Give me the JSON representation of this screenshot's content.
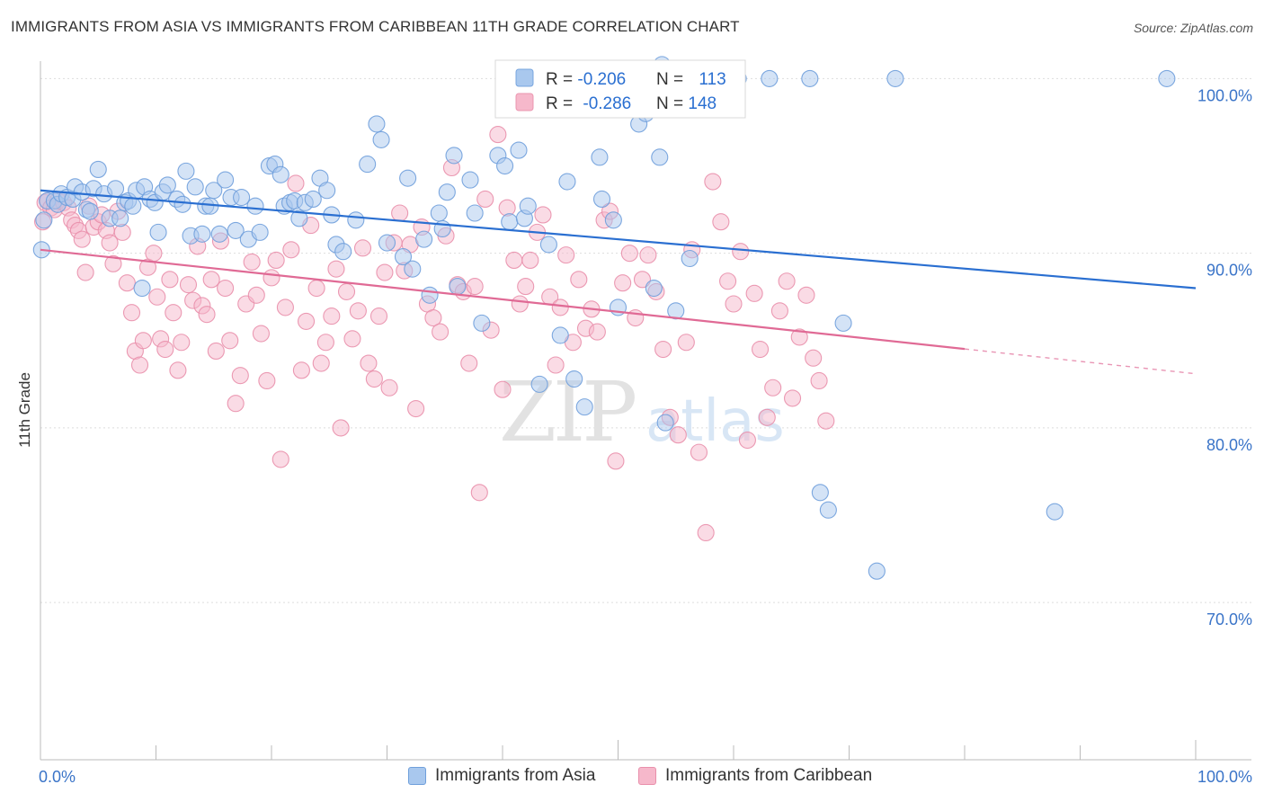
{
  "title": "IMMIGRANTS FROM ASIA VS IMMIGRANTS FROM CARIBBEAN 11TH GRADE CORRELATION CHART",
  "source": "Source: ZipAtlas.com",
  "watermark": {
    "zip": "ZIP",
    "atlas": "atlas"
  },
  "colors": {
    "asia_fill": "#a9c8ee",
    "asia_stroke": "#6f9fdb",
    "asia_line": "#2a6fd1",
    "carib_fill": "#f6b8cb",
    "carib_stroke": "#e98fab",
    "carib_line": "#e06a95",
    "tick_label": "#3a74c8",
    "grid": "#dddddd"
  },
  "legend": {
    "rows": [
      {
        "r_label": "R = ",
        "r_value": "-0.206",
        "n_label": "N = ",
        "n_value": "113"
      },
      {
        "r_label": "R = ",
        "r_value": "-0.286",
        "n_label": "N = ",
        "n_value": "148"
      }
    ]
  },
  "chart_data": {
    "type": "scatter",
    "ylabel": "11th Grade",
    "xlabel": "",
    "xlim": [
      0,
      100
    ],
    "ylim": [
      61,
      101
    ],
    "x_tick_labels": [
      "0.0%",
      "100.0%"
    ],
    "y_ticks": [
      70,
      80,
      90,
      100
    ],
    "y_tick_labels": [
      "70.0%",
      "80.0%",
      "90.0%",
      "100.0%"
    ],
    "grid": true,
    "legend_position": "top-center",
    "series": [
      {
        "name": "Immigrants from Asia",
        "r": -0.206,
        "n": 113,
        "trend": {
          "x": [
            0,
            100
          ],
          "y": [
            93.6,
            88.0
          ]
        },
        "points": [
          [
            0.3,
            91.9
          ],
          [
            0.1,
            90.2
          ],
          [
            0.6,
            93.0
          ],
          [
            1.2,
            93.0
          ],
          [
            1.5,
            92.8
          ],
          [
            1.8,
            93.4
          ],
          [
            2.3,
            93.2
          ],
          [
            2.8,
            93.1
          ],
          [
            3.0,
            93.8
          ],
          [
            3.6,
            93.5
          ],
          [
            4.0,
            92.5
          ],
          [
            4.3,
            92.4
          ],
          [
            4.6,
            93.7
          ],
          [
            5.0,
            94.8
          ],
          [
            5.5,
            93.4
          ],
          [
            6.0,
            92.0
          ],
          [
            6.5,
            93.7
          ],
          [
            6.9,
            92.0
          ],
          [
            7.3,
            92.9
          ],
          [
            7.6,
            93.0
          ],
          [
            8.0,
            92.7
          ],
          [
            8.3,
            93.6
          ],
          [
            8.8,
            88.0
          ],
          [
            9.0,
            93.8
          ],
          [
            9.5,
            93.1
          ],
          [
            9.9,
            92.9
          ],
          [
            10.2,
            91.2
          ],
          [
            10.6,
            93.5
          ],
          [
            11.0,
            93.9
          ],
          [
            11.8,
            93.1
          ],
          [
            12.3,
            92.8
          ],
          [
            12.6,
            94.7
          ],
          [
            13.0,
            91.0
          ],
          [
            13.4,
            93.8
          ],
          [
            14.0,
            91.1
          ],
          [
            14.3,
            92.7
          ],
          [
            14.7,
            92.7
          ],
          [
            15.0,
            93.6
          ],
          [
            15.5,
            91.1
          ],
          [
            16.0,
            94.2
          ],
          [
            16.5,
            93.2
          ],
          [
            16.9,
            91.3
          ],
          [
            17.4,
            93.2
          ],
          [
            18.0,
            90.8
          ],
          [
            18.6,
            92.7
          ],
          [
            19.0,
            91.2
          ],
          [
            19.8,
            95.0
          ],
          [
            20.3,
            95.1
          ],
          [
            20.8,
            94.5
          ],
          [
            21.1,
            92.7
          ],
          [
            21.6,
            92.9
          ],
          [
            22.0,
            93.0
          ],
          [
            22.4,
            92.0
          ],
          [
            22.9,
            92.9
          ],
          [
            23.6,
            93.1
          ],
          [
            24.2,
            94.3
          ],
          [
            24.8,
            93.6
          ],
          [
            25.2,
            92.2
          ],
          [
            25.6,
            90.5
          ],
          [
            26.2,
            90.1
          ],
          [
            27.3,
            91.9
          ],
          [
            28.3,
            95.1
          ],
          [
            29.1,
            97.4
          ],
          [
            29.5,
            96.5
          ],
          [
            30.0,
            90.6
          ],
          [
            31.4,
            89.8
          ],
          [
            31.8,
            94.3
          ],
          [
            32.2,
            89.1
          ],
          [
            33.2,
            90.8
          ],
          [
            33.7,
            87.6
          ],
          [
            34.5,
            92.3
          ],
          [
            34.8,
            91.4
          ],
          [
            35.2,
            93.5
          ],
          [
            35.8,
            95.6
          ],
          [
            36.1,
            88.1
          ],
          [
            37.2,
            94.2
          ],
          [
            37.6,
            92.3
          ],
          [
            38.2,
            86.0
          ],
          [
            39.6,
            95.6
          ],
          [
            40.2,
            95.0
          ],
          [
            40.6,
            91.8
          ],
          [
            41.4,
            95.9
          ],
          [
            41.9,
            92.0
          ],
          [
            42.2,
            92.7
          ],
          [
            43.2,
            82.5
          ],
          [
            44.0,
            90.5
          ],
          [
            45.0,
            85.3
          ],
          [
            45.6,
            94.1
          ],
          [
            46.2,
            82.8
          ],
          [
            47.1,
            81.2
          ],
          [
            48.4,
            95.5
          ],
          [
            48.6,
            93.1
          ],
          [
            49.6,
            91.9
          ],
          [
            50.0,
            86.9
          ],
          [
            51.8,
            97.4
          ],
          [
            52.4,
            98.0
          ],
          [
            53.1,
            88.0
          ],
          [
            53.6,
            95.5
          ],
          [
            53.8,
            100.8
          ],
          [
            54.1,
            80.3
          ],
          [
            55.0,
            86.7
          ],
          [
            56.2,
            89.7
          ],
          [
            60.4,
            100.0
          ],
          [
            63.1,
            100.0
          ],
          [
            66.6,
            100.0
          ],
          [
            67.5,
            76.3
          ],
          [
            68.2,
            75.3
          ],
          [
            69.5,
            86.0
          ],
          [
            72.4,
            71.8
          ],
          [
            74.0,
            100.0
          ],
          [
            87.8,
            75.2
          ],
          [
            97.5,
            100.0
          ]
        ]
      },
      {
        "name": "Immigrants from Caribbean",
        "r": -0.286,
        "n": 148,
        "trend": {
          "x": [
            0,
            100
          ],
          "y": [
            90.2,
            83.1
          ]
        },
        "points": [
          [
            0.2,
            91.8
          ],
          [
            0.4,
            92.9
          ],
          [
            0.6,
            93.0
          ],
          [
            0.9,
            92.6
          ],
          [
            1.2,
            92.5
          ],
          [
            1.5,
            93.0
          ],
          [
            2.0,
            92.9
          ],
          [
            2.4,
            92.6
          ],
          [
            2.7,
            91.9
          ],
          [
            3.0,
            91.6
          ],
          [
            3.3,
            91.3
          ],
          [
            3.6,
            90.8
          ],
          [
            3.9,
            88.9
          ],
          [
            4.2,
            92.7
          ],
          [
            4.6,
            91.5
          ],
          [
            5.0,
            91.8
          ],
          [
            5.3,
            92.2
          ],
          [
            5.7,
            91.3
          ],
          [
            6.0,
            90.6
          ],
          [
            6.3,
            89.4
          ],
          [
            6.7,
            92.4
          ],
          [
            7.1,
            91.2
          ],
          [
            7.5,
            88.3
          ],
          [
            7.9,
            86.6
          ],
          [
            8.2,
            84.4
          ],
          [
            8.6,
            83.6
          ],
          [
            8.9,
            85.0
          ],
          [
            9.3,
            89.2
          ],
          [
            9.8,
            90.0
          ],
          [
            10.1,
            87.5
          ],
          [
            10.4,
            85.1
          ],
          [
            10.8,
            84.5
          ],
          [
            11.2,
            88.5
          ],
          [
            11.5,
            86.6
          ],
          [
            11.9,
            83.3
          ],
          [
            12.2,
            84.9
          ],
          [
            12.8,
            88.2
          ],
          [
            13.2,
            87.3
          ],
          [
            13.6,
            90.4
          ],
          [
            14.0,
            87.0
          ],
          [
            14.4,
            86.5
          ],
          [
            14.8,
            88.5
          ],
          [
            15.2,
            84.4
          ],
          [
            15.6,
            90.7
          ],
          [
            16.0,
            88.0
          ],
          [
            16.4,
            85.0
          ],
          [
            16.9,
            81.4
          ],
          [
            17.3,
            83.0
          ],
          [
            17.8,
            87.1
          ],
          [
            18.3,
            89.5
          ],
          [
            18.7,
            87.6
          ],
          [
            19.1,
            85.4
          ],
          [
            19.6,
            82.7
          ],
          [
            20.0,
            88.6
          ],
          [
            20.4,
            89.6
          ],
          [
            20.8,
            78.2
          ],
          [
            21.2,
            86.9
          ],
          [
            21.7,
            90.2
          ],
          [
            22.1,
            94.0
          ],
          [
            22.6,
            83.3
          ],
          [
            23.0,
            86.1
          ],
          [
            23.4,
            91.6
          ],
          [
            23.9,
            88.0
          ],
          [
            24.3,
            83.7
          ],
          [
            24.7,
            84.9
          ],
          [
            25.2,
            86.4
          ],
          [
            25.6,
            89.1
          ],
          [
            26.0,
            80.0
          ],
          [
            26.5,
            87.8
          ],
          [
            27.0,
            85.1
          ],
          [
            27.5,
            86.7
          ],
          [
            27.9,
            90.3
          ],
          [
            28.4,
            83.7
          ],
          [
            28.9,
            82.8
          ],
          [
            29.3,
            86.4
          ],
          [
            29.8,
            88.9
          ],
          [
            30.2,
            82.3
          ],
          [
            30.6,
            90.6
          ],
          [
            31.1,
            92.3
          ],
          [
            31.5,
            89.0
          ],
          [
            32.0,
            90.5
          ],
          [
            32.5,
            81.1
          ],
          [
            33.0,
            91.5
          ],
          [
            33.5,
            87.1
          ],
          [
            34.0,
            86.3
          ],
          [
            34.6,
            85.5
          ],
          [
            35.1,
            91.0
          ],
          [
            35.6,
            94.9
          ],
          [
            36.1,
            88.2
          ],
          [
            36.6,
            87.8
          ],
          [
            37.1,
            83.7
          ],
          [
            37.6,
            88.1
          ],
          [
            38.0,
            76.3
          ],
          [
            38.5,
            93.1
          ],
          [
            39.0,
            85.6
          ],
          [
            39.6,
            96.8
          ],
          [
            40.0,
            82.2
          ],
          [
            40.4,
            92.6
          ],
          [
            41.0,
            89.6
          ],
          [
            41.5,
            87.1
          ],
          [
            42.0,
            88.1
          ],
          [
            42.4,
            89.6
          ],
          [
            43.0,
            91.2
          ],
          [
            43.5,
            92.2
          ],
          [
            44.1,
            87.5
          ],
          [
            44.6,
            83.6
          ],
          [
            45.0,
            86.9
          ],
          [
            45.5,
            89.9
          ],
          [
            46.1,
            84.9
          ],
          [
            46.6,
            88.5
          ],
          [
            47.2,
            85.7
          ],
          [
            47.7,
            86.8
          ],
          [
            48.2,
            85.5
          ],
          [
            48.8,
            91.9
          ],
          [
            49.3,
            92.4
          ],
          [
            49.8,
            78.1
          ],
          [
            50.4,
            88.3
          ],
          [
            51.0,
            90.0
          ],
          [
            51.5,
            86.3
          ],
          [
            52.1,
            88.5
          ],
          [
            52.6,
            89.9
          ],
          [
            53.3,
            87.8
          ],
          [
            53.9,
            84.5
          ],
          [
            54.5,
            80.6
          ],
          [
            55.2,
            79.6
          ],
          [
            55.9,
            84.9
          ],
          [
            56.4,
            90.2
          ],
          [
            57.0,
            78.6
          ],
          [
            57.6,
            74.0
          ],
          [
            58.2,
            94.1
          ],
          [
            58.9,
            91.8
          ],
          [
            59.5,
            88.4
          ],
          [
            60.0,
            87.1
          ],
          [
            60.6,
            90.1
          ],
          [
            61.2,
            79.3
          ],
          [
            61.8,
            87.7
          ],
          [
            62.3,
            84.5
          ],
          [
            62.9,
            80.6
          ],
          [
            63.4,
            82.3
          ],
          [
            64.0,
            86.7
          ],
          [
            64.6,
            88.4
          ],
          [
            65.1,
            81.7
          ],
          [
            65.7,
            85.2
          ],
          [
            66.3,
            87.6
          ],
          [
            66.9,
            84.0
          ],
          [
            67.4,
            82.7
          ],
          [
            68.0,
            80.4
          ]
        ]
      }
    ]
  },
  "bottom_legend": [
    {
      "label": "Immigrants from Asia"
    },
    {
      "label": "Immigrants from Caribbean"
    }
  ]
}
